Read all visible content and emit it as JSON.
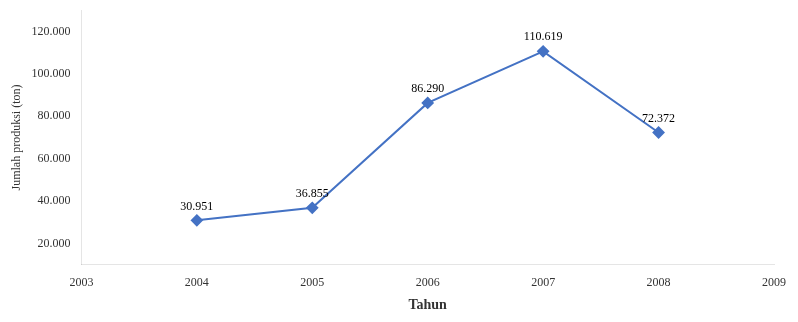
{
  "chart_data": {
    "type": "line",
    "x": [
      2004,
      2005,
      2006,
      2007,
      2008
    ],
    "values": [
      30951,
      36855,
      86290,
      110619,
      72372
    ],
    "value_labels": [
      "30.951",
      "36.855",
      "86.290",
      "110.619",
      "72.372"
    ],
    "data_labels": true,
    "xlabel": "Tahun",
    "ylabel": "Jumlah produksi (ton)",
    "xlim": [
      2003,
      2009
    ],
    "xticks": [
      2003,
      2004,
      2005,
      2006,
      2007,
      2008,
      2009
    ],
    "ylim": [
      10000,
      130000
    ],
    "yticks": [
      {
        "value": 20000,
        "label": "20.000"
      },
      {
        "value": 40000,
        "label": "40.000"
      },
      {
        "value": 60000,
        "label": "60.000"
      },
      {
        "value": 80000,
        "label": "80.000"
      },
      {
        "value": 100000,
        "label": "100.000"
      },
      {
        "value": 120000,
        "label": "120.000"
      }
    ],
    "color": "#4472C4",
    "marker": "diamond",
    "grid": false
  }
}
